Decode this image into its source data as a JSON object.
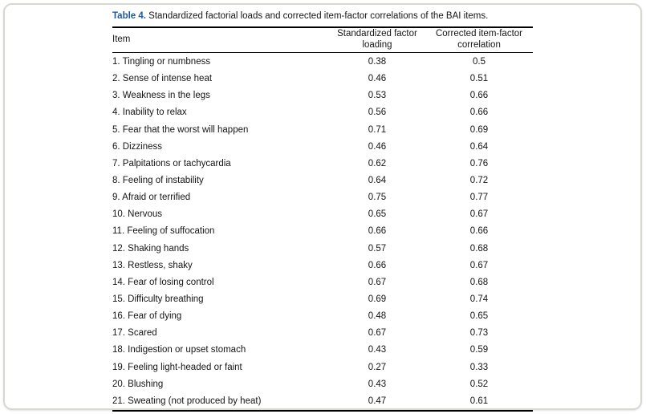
{
  "colors": {
    "title_accent": "#1f56a7",
    "rule": "#000000",
    "card_border": "#d9d8d0"
  },
  "table": {
    "title_prefix": "Table 4.",
    "title_rest": " Standardized factorial loads and corrected item-factor correlations of the BAI items.",
    "columns": [
      "Item",
      "Standardized factor loading",
      "Corrected item-factor correlation"
    ],
    "rows": [
      {
        "item": "1. Tingling or numbness",
        "loading": "0.38",
        "correlation": "0.5"
      },
      {
        "item": "2. Sense of intense heat",
        "loading": "0.46",
        "correlation": "0.51"
      },
      {
        "item": "3. Weakness in the legs",
        "loading": "0.53",
        "correlation": "0.66"
      },
      {
        "item": "4. Inability to relax",
        "loading": "0.56",
        "correlation": "0.66"
      },
      {
        "item": "5. Fear that the worst will happen",
        "loading": "0.71",
        "correlation": "0.69"
      },
      {
        "item": "6. Dizziness",
        "loading": "0.46",
        "correlation": "0.64"
      },
      {
        "item": "7. Palpitations or tachycardia",
        "loading": "0.62",
        "correlation": "0.76"
      },
      {
        "item": "8. Feeling of instability",
        "loading": "0.64",
        "correlation": "0.72"
      },
      {
        "item": "9. Afraid or terrified",
        "loading": "0.75",
        "correlation": "0.77"
      },
      {
        "item": "10. Nervous",
        "loading": "0.65",
        "correlation": "0.67"
      },
      {
        "item": "11. Feeling of suffocation",
        "loading": "0.66",
        "correlation": "0.66"
      },
      {
        "item": "12. Shaking hands",
        "loading": "0.57",
        "correlation": "0.68"
      },
      {
        "item": "13. Restless, shaky",
        "loading": "0.66",
        "correlation": "0.67"
      },
      {
        "item": "14. Fear of losing control",
        "loading": "0.67",
        "correlation": "0.68"
      },
      {
        "item": "15. Difficulty breathing",
        "loading": "0.69",
        "correlation": "0.74"
      },
      {
        "item": "16. Fear of dying",
        "loading": "0.48",
        "correlation": "0.65"
      },
      {
        "item": "17. Scared",
        "loading": "0.67",
        "correlation": "0.73"
      },
      {
        "item": "18. Indigestion or upset stomach",
        "loading": "0.43",
        "correlation": "0.59"
      },
      {
        "item": "19. Feeling light-headed or faint",
        "loading": "0.27",
        "correlation": "0.33"
      },
      {
        "item": "20. Blushing",
        "loading": "0.43",
        "correlation": "0.52"
      },
      {
        "item": "21. Sweating (not produced by heat)",
        "loading": "0.47",
        "correlation": "0.61"
      }
    ]
  }
}
